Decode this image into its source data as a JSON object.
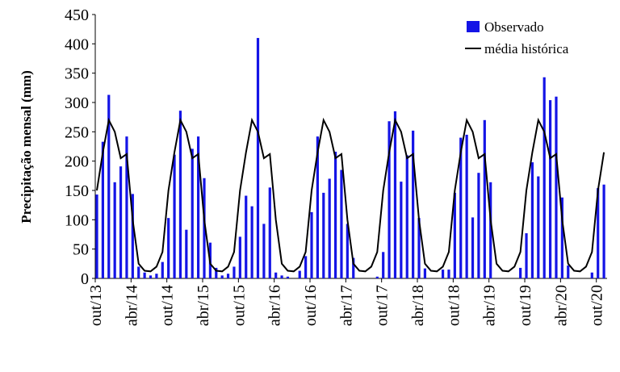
{
  "chart_data": {
    "type": "bar_line",
    "y_label": "Precipitação mensal (mm)",
    "categories": [
      "out/13",
      null,
      null,
      null,
      null,
      null,
      "abr/14",
      null,
      null,
      null,
      null,
      null,
      "out/14",
      null,
      null,
      null,
      null,
      null,
      "abr/15",
      null,
      null,
      null,
      null,
      null,
      "out/15",
      null,
      null,
      null,
      null,
      null,
      "abr/16",
      null,
      null,
      null,
      null,
      null,
      "out/16",
      null,
      null,
      null,
      null,
      null,
      "abr/17",
      null,
      null,
      null,
      null,
      null,
      "out/17",
      null,
      null,
      null,
      null,
      null,
      "abr/18",
      null,
      null,
      null,
      null,
      null,
      "out/18",
      null,
      null,
      null,
      null,
      null,
      "abr/19",
      null,
      null,
      null,
      null,
      null,
      "out/19",
      null,
      null,
      null,
      null,
      null,
      "abr/20",
      null,
      null,
      null,
      null,
      null,
      "out/20",
      null
    ],
    "series": [
      {
        "name": "Observado",
        "kind": "bar",
        "color": "#1414e6",
        "values": [
          143,
          233,
          313,
          164,
          191,
          242,
          144,
          20,
          10,
          5,
          8,
          28,
          103,
          211,
          286,
          83,
          221,
          242,
          171,
          61,
          18,
          5,
          8,
          20,
          71,
          141,
          123,
          410,
          93,
          155,
          10,
          5,
          3,
          0,
          13,
          38,
          113,
          242,
          146,
          170,
          216,
          185,
          93,
          35,
          0,
          0,
          0,
          3,
          45,
          268,
          285,
          165,
          210,
          252,
          103,
          17,
          0,
          0,
          15,
          15,
          146,
          240,
          245,
          104,
          180,
          270,
          164,
          0,
          0,
          0,
          0,
          18,
          77,
          198,
          174,
          343,
          304,
          310,
          138,
          22,
          0,
          0,
          0,
          10,
          154,
          160
        ]
      },
      {
        "name": "média histórica",
        "kind": "line",
        "color": "#000000",
        "values": [
          150,
          215,
          270,
          250,
          205,
          212,
          100,
          25,
          13,
          12,
          20,
          45,
          150,
          215,
          270,
          250,
          205,
          212,
          100,
          25,
          13,
          12,
          20,
          45,
          150,
          215,
          270,
          250,
          205,
          212,
          100,
          25,
          13,
          12,
          20,
          45,
          150,
          215,
          270,
          250,
          205,
          212,
          100,
          25,
          13,
          12,
          20,
          45,
          150,
          215,
          270,
          250,
          205,
          212,
          100,
          25,
          13,
          12,
          20,
          45,
          150,
          215,
          270,
          250,
          205,
          212,
          100,
          25,
          13,
          12,
          20,
          45,
          150,
          215,
          270,
          250,
          205,
          212,
          100,
          25,
          13,
          12,
          20,
          45,
          150,
          215
        ]
      }
    ],
    "ylim": [
      0,
      450
    ],
    "yticks": [
      0,
      50,
      100,
      150,
      200,
      250,
      300,
      350,
      400,
      450
    ],
    "legend": "upper right"
  }
}
